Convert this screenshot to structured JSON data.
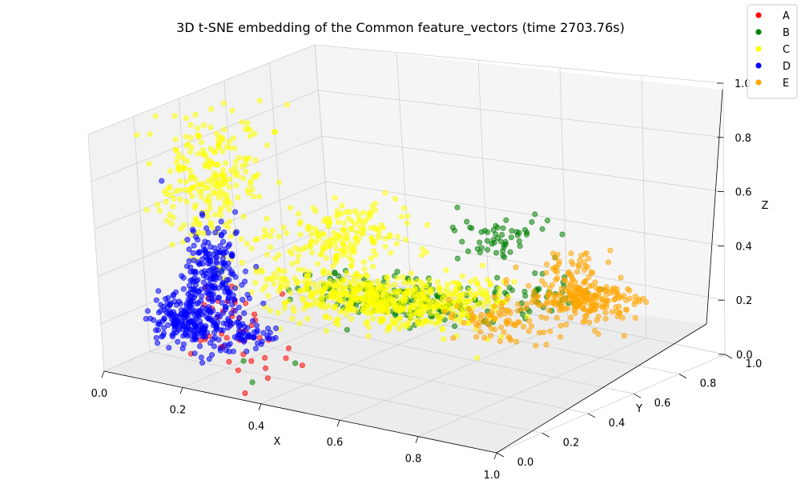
{
  "chart_data": {
    "type": "scatter",
    "projection": "3d",
    "title": "3D t-SNE embedding of the Common feature_vectors (time 2703.76s)",
    "xlabel": "X",
    "ylabel": "Y",
    "zlabel": "Z",
    "xlim": [
      0,
      1
    ],
    "ylim": [
      0,
      1
    ],
    "zlim": [
      0,
      1
    ],
    "grid": true,
    "legend_position": "top-right",
    "x_ticks": [
      "0.0",
      "0.2",
      "0.4",
      "0.6",
      "0.8",
      "1.0"
    ],
    "y_ticks": [
      "0.0",
      "0.2",
      "0.4",
      "0.6",
      "0.8",
      "1.0"
    ],
    "z_ticks": [
      "0.0",
      "0.2",
      "0.4",
      "0.6",
      "0.8",
      "1.0"
    ],
    "series": [
      {
        "name": "A",
        "color": "#ff0000",
        "clusters": [
          {
            "cx": 0.18,
            "cy": 0.25,
            "cz": 0.18,
            "sx": 0.03,
            "sy": 0.06,
            "sz": 0.07,
            "n": 30
          },
          {
            "cx": 0.28,
            "cy": 0.15,
            "cz": 0.12,
            "sx": 0.05,
            "sy": 0.05,
            "sz": 0.04,
            "n": 12
          }
        ],
        "points": [
          [
            0.36,
            0.1,
            0.05
          ],
          [
            0.33,
            0.05,
            0.0
          ],
          [
            0.42,
            0.15,
            0.1
          ],
          [
            0.3,
            0.28,
            0.3
          ]
        ]
      },
      {
        "name": "B",
        "color": "#008000",
        "clusters": [
          {
            "cx": 0.45,
            "cy": 0.55,
            "cz": 0.21,
            "sx": 0.12,
            "sy": 0.06,
            "sz": 0.03,
            "n": 170
          },
          {
            "cx": 0.55,
            "cy": 0.78,
            "cz": 0.4,
            "sx": 0.05,
            "sy": 0.06,
            "sz": 0.05,
            "n": 55
          },
          {
            "cx": 0.68,
            "cy": 0.72,
            "cz": 0.24,
            "sx": 0.06,
            "sy": 0.05,
            "sz": 0.03,
            "n": 40
          }
        ],
        "points": [
          [
            0.35,
            0.05,
            0.05
          ],
          [
            0.3,
            0.1,
            0.1
          ],
          [
            0.42,
            0.12,
            0.12
          ],
          [
            0.68,
            0.85,
            0.42
          ]
        ]
      },
      {
        "name": "C",
        "color": "#ffff00",
        "clusters": [
          {
            "cx": 0.4,
            "cy": 0.5,
            "cz": 0.22,
            "sx": 0.13,
            "sy": 0.07,
            "sz": 0.035,
            "n": 520
          },
          {
            "cx": 0.12,
            "cy": 0.3,
            "cz": 0.7,
            "sx": 0.04,
            "sy": 0.08,
            "sz": 0.14,
            "n": 230
          },
          {
            "cx": 0.3,
            "cy": 0.55,
            "cz": 0.43,
            "sx": 0.07,
            "sy": 0.12,
            "sz": 0.06,
            "n": 190
          },
          {
            "cx": 0.58,
            "cy": 0.6,
            "cz": 0.26,
            "sx": 0.06,
            "sy": 0.05,
            "sz": 0.03,
            "n": 70
          }
        ],
        "points": [
          [
            0.17,
            0.45,
            1.0
          ],
          [
            0.22,
            0.48,
            0.98
          ],
          [
            0.1,
            0.2,
            0.92
          ]
        ]
      },
      {
        "name": "D",
        "color": "#0000ff",
        "clusters": [
          {
            "cx": 0.14,
            "cy": 0.25,
            "cz": 0.3,
            "sx": 0.025,
            "sy": 0.05,
            "sz": 0.13,
            "n": 250
          },
          {
            "cx": 0.1,
            "cy": 0.18,
            "cz": 0.18,
            "sx": 0.03,
            "sy": 0.04,
            "sz": 0.05,
            "n": 160
          },
          {
            "cx": 0.24,
            "cy": 0.2,
            "cz": 0.15,
            "sx": 0.05,
            "sy": 0.04,
            "sz": 0.03,
            "n": 70
          }
        ],
        "points": []
      },
      {
        "name": "E",
        "color": "#ffa500",
        "clusters": [
          {
            "cx": 0.82,
            "cy": 0.7,
            "cz": 0.26,
            "sx": 0.06,
            "sy": 0.05,
            "sz": 0.035,
            "n": 220
          },
          {
            "cx": 0.71,
            "cy": 0.52,
            "cz": 0.22,
            "sx": 0.06,
            "sy": 0.04,
            "sz": 0.03,
            "n": 80
          },
          {
            "cx": 0.72,
            "cy": 0.82,
            "cz": 0.32,
            "sx": 0.04,
            "sy": 0.04,
            "sz": 0.03,
            "n": 35
          }
        ],
        "points": [
          [
            0.72,
            0.5,
            0.15
          ]
        ]
      }
    ]
  }
}
